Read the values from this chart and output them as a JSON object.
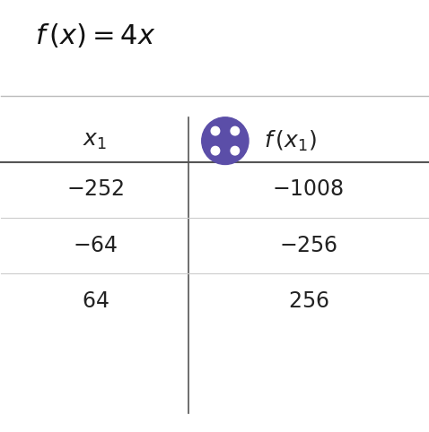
{
  "background_color": "#ffffff",
  "rows": [
    [
      "-252",
      "-1008"
    ],
    [
      "-64",
      "-256"
    ],
    [
      "64",
      "256"
    ]
  ],
  "circle_color": "#5b4ea8",
  "circle_dot_color": "#ffffff",
  "divider_line_color": "#cccccc",
  "header_line_color": "#555555",
  "vertical_line_color": "#555555",
  "text_color": "#222222",
  "title_color": "#111111",
  "title_sep_color": "#bbbbbb"
}
